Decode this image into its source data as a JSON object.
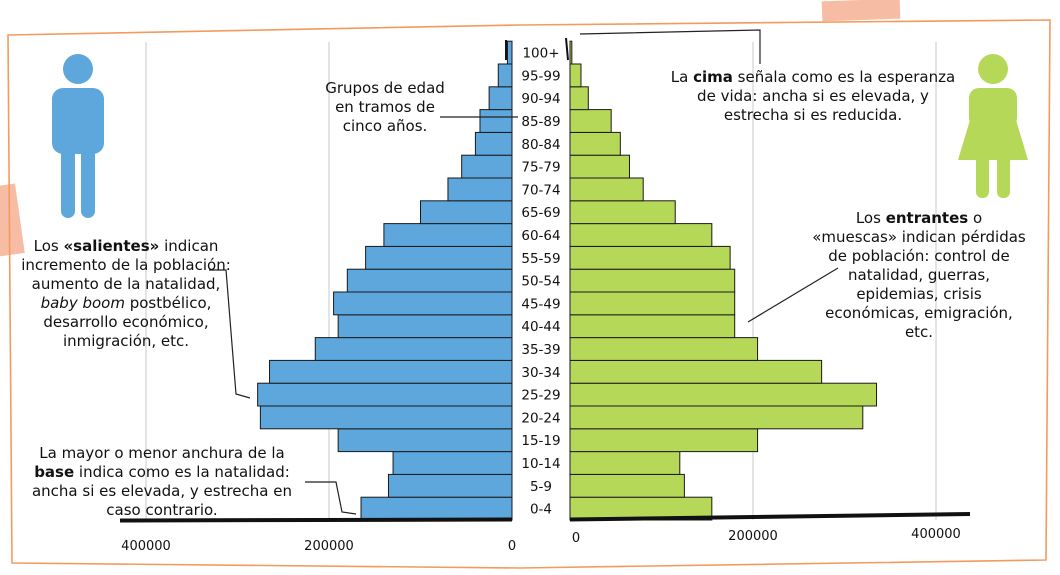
{
  "colors": {
    "male": "#5da7dc",
    "female": "#b6d858",
    "border": "#f39b5c",
    "grid": "#c9c9c9",
    "male_icon": "#5da7dc",
    "female_icon": "#b6d858",
    "tape": "#f6b59a"
  },
  "icons": {
    "male": "man-icon",
    "female": "woman-icon"
  },
  "annotations": {
    "groups": "Grupos de edad en tramos de cinco años.",
    "cima": {
      "pre": "La ",
      "bold": "cima",
      "post": " señala como es la esperanza de vida: ancha si es elevada, y estrecha si es reducida."
    },
    "entrantes": {
      "pre": "Los ",
      "bold": "entrantes",
      "post": " o «muescas» indican pérdidas de población: control de natalidad, guerras, epidemias, crisis económicas, emigración, etc."
    },
    "salientes": {
      "pre": "Los ",
      "bold": "«salientes»",
      "mid": " indican incremento de la población: aumento de la natalidad, ",
      "italic": "baby boom",
      "post": " postbélico, desarrollo económico, inmigración, etc."
    },
    "base": {
      "pre": "La mayor o menor anchura de la ",
      "bold": "base",
      "post": " indica como es la natalidad: ancha si es elevada, y estrecha en caso contrario."
    }
  },
  "chart_data": {
    "type": "bar",
    "orientation": "horizontal-pyramid",
    "categories": [
      "0-4",
      "5-9",
      "10-14",
      "15-19",
      "20-24",
      "25-29",
      "30-34",
      "35-39",
      "40-44",
      "45-49",
      "50-54",
      "55-59",
      "60-64",
      "65-69",
      "70-74",
      "75-79",
      "80-84",
      "85-89",
      "90-94",
      "95-99",
      "100+"
    ],
    "series": [
      {
        "side": "left",
        "values": [
          165000,
          135000,
          130000,
          190000,
          275000,
          278000,
          265000,
          215000,
          190000,
          195000,
          180000,
          160000,
          140000,
          100000,
          70000,
          55000,
          40000,
          35000,
          25000,
          15000,
          5000
        ]
      },
      {
        "side": "right",
        "values": [
          155000,
          125000,
          120000,
          205000,
          320000,
          335000,
          275000,
          205000,
          180000,
          180000,
          180000,
          175000,
          155000,
          115000,
          80000,
          65000,
          55000,
          45000,
          20000,
          12000,
          2000
        ]
      }
    ],
    "left_ticks": [
      "400000",
      "200000",
      "0"
    ],
    "right_ticks": [
      "0",
      "200000",
      "400000"
    ],
    "xlim": [
      0,
      420000
    ],
    "grid": "vertical"
  }
}
